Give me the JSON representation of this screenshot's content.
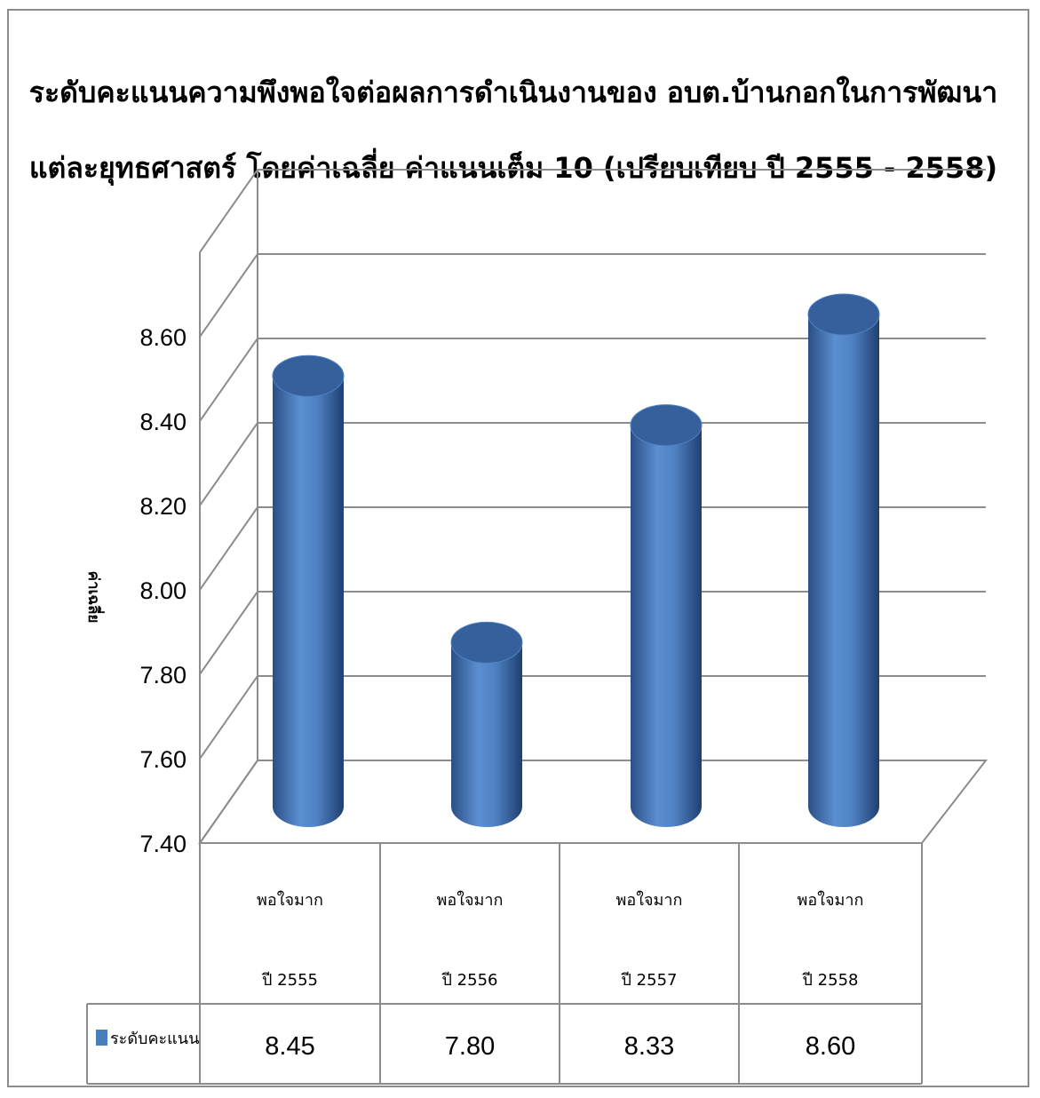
{
  "chart_data": {
    "type": "bar",
    "title_lines": [
      "ระดับคะแนนความพึงพอใจต่อผลการดำเนินงานของ อบต.บ้านกอกในการพัฒนา",
      "แต่ละยุทธศาสตร์ โดยค่าเฉลี่ย ค่าแนนเต็ม 10 (เปรียบเทียบ  ปี 2555 - 2558)"
    ],
    "ylabel": "ค่าเฉลี่ย",
    "ylim": [
      7.4,
      8.6
    ],
    "yticks": [
      "7.40",
      "7.60",
      "7.80",
      "8.00",
      "8.20",
      "8.40",
      "8.60"
    ],
    "categories": [
      [
        "พอใจมาก",
        "ปี 2555"
      ],
      [
        "พอใจมาก",
        "ปี 2556"
      ],
      [
        "พอใจมาก",
        "ปี 2557"
      ],
      [
        "พอใจมาก",
        "ปี 2558"
      ]
    ],
    "series": [
      {
        "name": "ระดับคะแนน",
        "values": [
          8.45,
          7.8,
          8.33,
          8.6
        ],
        "labels": [
          "8.45",
          "7.80",
          "8.33",
          "8.60"
        ],
        "color": "#4a7ebb"
      }
    ],
    "grid": true,
    "style": "3d-cylinder",
    "legend": "data-table"
  }
}
